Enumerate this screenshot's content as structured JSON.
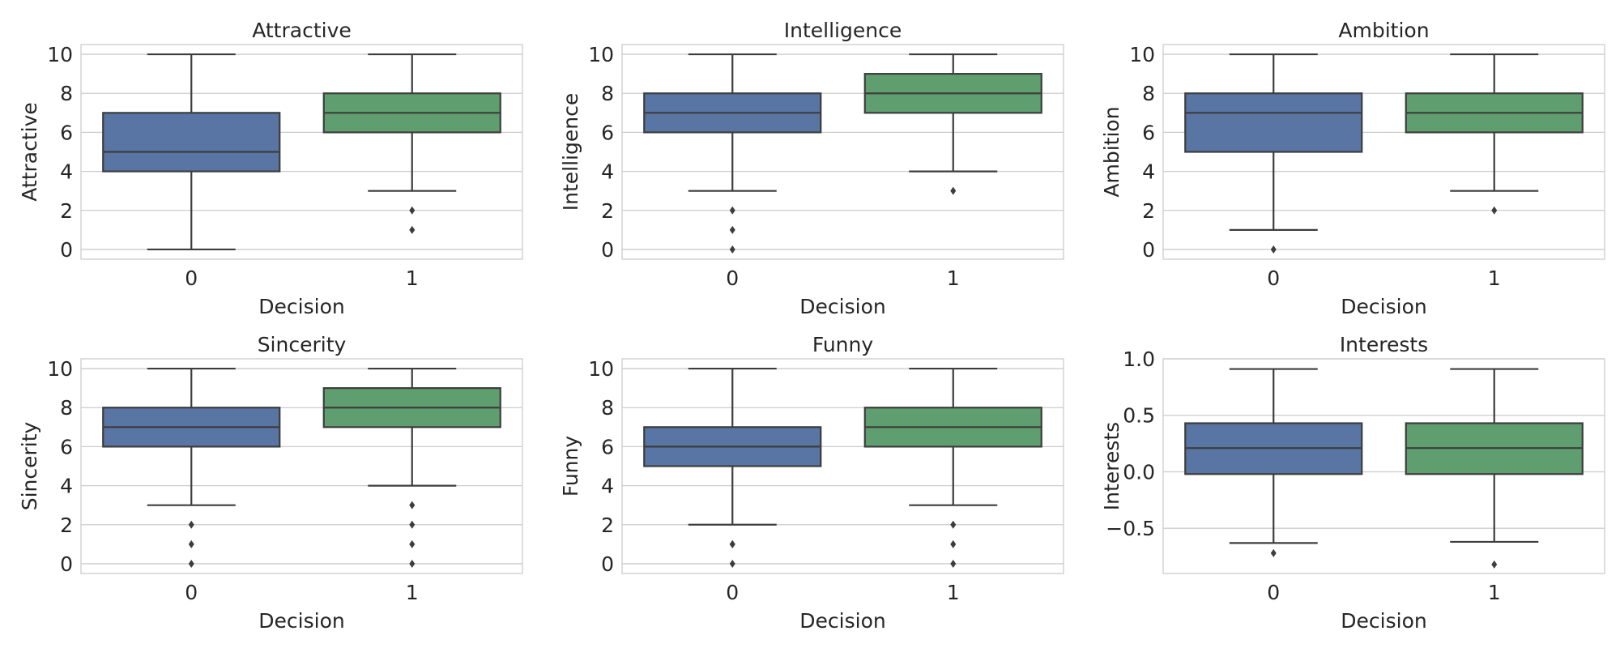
{
  "chart_data": [
    {
      "type": "box",
      "title": "Attractive",
      "xlabel": "Decision",
      "ylabel": "Attractive",
      "ylim": [
        -0.5,
        10.5
      ],
      "yticks": [
        0,
        2,
        4,
        6,
        8,
        10
      ],
      "ytick_labels": [
        "0",
        "2",
        "4",
        "6",
        "8",
        "10"
      ],
      "categories": [
        "0",
        "1"
      ],
      "grid": true,
      "boxes": [
        {
          "category": "0",
          "color": "#5875a4",
          "whisker_low": 0,
          "q1": 4,
          "median": 5,
          "q3": 7,
          "whisker_high": 10,
          "fliers": []
        },
        {
          "category": "1",
          "color": "#5f9e6e",
          "whisker_low": 3,
          "q1": 6,
          "median": 7,
          "q3": 8,
          "whisker_high": 10,
          "fliers": [
            2,
            1
          ]
        }
      ]
    },
    {
      "type": "box",
      "title": "Intelligence",
      "xlabel": "Decision",
      "ylabel": "Intelligence",
      "ylim": [
        -0.5,
        10.5
      ],
      "yticks": [
        0,
        2,
        4,
        6,
        8,
        10
      ],
      "ytick_labels": [
        "0",
        "2",
        "4",
        "6",
        "8",
        "10"
      ],
      "categories": [
        "0",
        "1"
      ],
      "grid": true,
      "boxes": [
        {
          "category": "0",
          "color": "#5875a4",
          "whisker_low": 3,
          "q1": 6,
          "median": 7,
          "q3": 8,
          "whisker_high": 10,
          "fliers": [
            2,
            1,
            0
          ]
        },
        {
          "category": "1",
          "color": "#5f9e6e",
          "whisker_low": 4,
          "q1": 7,
          "median": 8,
          "q3": 9,
          "whisker_high": 10,
          "fliers": [
            3
          ]
        }
      ]
    },
    {
      "type": "box",
      "title": "Ambition",
      "xlabel": "Decision",
      "ylabel": "Ambition",
      "ylim": [
        -0.5,
        10.5
      ],
      "yticks": [
        0,
        2,
        4,
        6,
        8,
        10
      ],
      "ytick_labels": [
        "0",
        "2",
        "4",
        "6",
        "8",
        "10"
      ],
      "categories": [
        "0",
        "1"
      ],
      "grid": true,
      "boxes": [
        {
          "category": "0",
          "color": "#5875a4",
          "whisker_low": 1,
          "q1": 5,
          "median": 7,
          "q3": 8,
          "whisker_high": 10,
          "fliers": [
            0
          ]
        },
        {
          "category": "1",
          "color": "#5f9e6e",
          "whisker_low": 3,
          "q1": 6,
          "median": 7,
          "q3": 8,
          "whisker_high": 10,
          "fliers": [
            2
          ]
        }
      ]
    },
    {
      "type": "box",
      "title": "Sincerity",
      "xlabel": "Decision",
      "ylabel": "Sincerity",
      "ylim": [
        -0.5,
        10.5
      ],
      "yticks": [
        0,
        2,
        4,
        6,
        8,
        10
      ],
      "ytick_labels": [
        "0",
        "2",
        "4",
        "6",
        "8",
        "10"
      ],
      "categories": [
        "0",
        "1"
      ],
      "grid": true,
      "boxes": [
        {
          "category": "0",
          "color": "#5875a4",
          "whisker_low": 3,
          "q1": 6,
          "median": 7,
          "q3": 8,
          "whisker_high": 10,
          "fliers": [
            2,
            1,
            0
          ]
        },
        {
          "category": "1",
          "color": "#5f9e6e",
          "whisker_low": 4,
          "q1": 7,
          "median": 8,
          "q3": 9,
          "whisker_high": 10,
          "fliers": [
            3,
            2,
            1,
            0
          ]
        }
      ]
    },
    {
      "type": "box",
      "title": "Funny",
      "xlabel": "Decision",
      "ylabel": "Funny",
      "ylim": [
        -0.5,
        10.5
      ],
      "yticks": [
        0,
        2,
        4,
        6,
        8,
        10
      ],
      "ytick_labels": [
        "0",
        "2",
        "4",
        "6",
        "8",
        "10"
      ],
      "categories": [
        "0",
        "1"
      ],
      "grid": true,
      "boxes": [
        {
          "category": "0",
          "color": "#5875a4",
          "whisker_low": 2,
          "q1": 5,
          "median": 6,
          "q3": 7,
          "whisker_high": 10,
          "fliers": [
            1,
            1,
            0
          ]
        },
        {
          "category": "1",
          "color": "#5f9e6e",
          "whisker_low": 3,
          "q1": 6,
          "median": 7,
          "q3": 8,
          "whisker_high": 10,
          "fliers": [
            2,
            1,
            0
          ]
        }
      ]
    },
    {
      "type": "box",
      "title": "Interests",
      "xlabel": "Decision",
      "ylabel": "Interests",
      "ylim": [
        -0.9,
        1.0
      ],
      "yticks": [
        -0.5,
        0.0,
        0.5,
        1.0
      ],
      "ytick_labels": [
        "−0.5",
        "0.0",
        "0.5",
        "1.0"
      ],
      "categories": [
        "0",
        "1"
      ],
      "grid": true,
      "boxes": [
        {
          "category": "0",
          "color": "#5875a4",
          "whisker_low": -0.63,
          "q1": -0.02,
          "median": 0.21,
          "q3": 0.43,
          "whisker_high": 0.91,
          "fliers": [
            -0.72
          ]
        },
        {
          "category": "1",
          "color": "#5f9e6e",
          "whisker_low": -0.62,
          "q1": -0.02,
          "median": 0.21,
          "q3": 0.43,
          "whisker_high": 0.91,
          "fliers": [
            -0.82
          ]
        }
      ]
    }
  ]
}
